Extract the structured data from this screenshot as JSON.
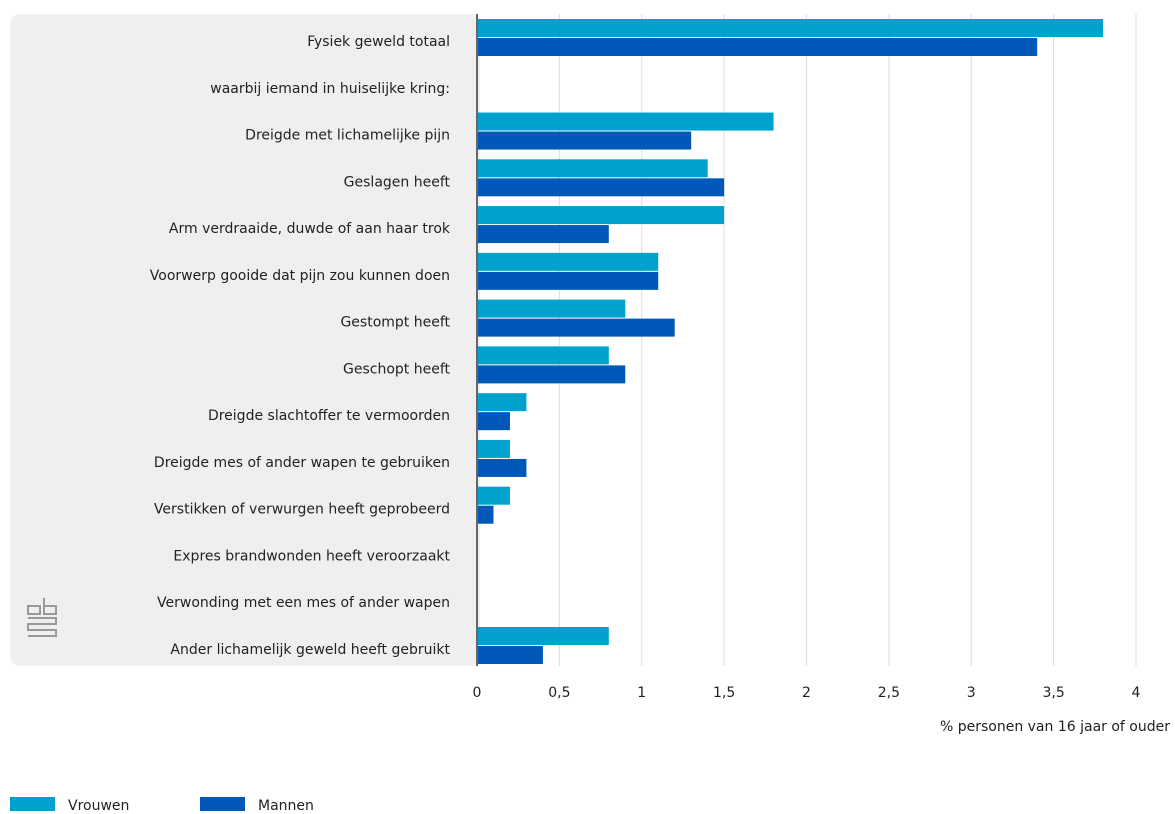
{
  "chart_data": {
    "type": "hbar",
    "categories": [
      "Fysiek geweld totaal",
      "waarbij iemand in huiselijke kring:",
      "Dreigde met lichamelijke pijn",
      "Geslagen heeft",
      "Arm verdraaide, duwde of aan haar trok",
      "Voorwerp gooide dat pijn zou kunnen doen",
      "Gestompt heeft",
      "Geschopt heeft",
      "Dreigde slachtoffer te vermoorden",
      "Dreigde mes of ander wapen te gebruiken",
      "Verstikken of verwurgen heeft geprobeerd",
      "Expres brandwonden heeft veroorzaakt",
      "Verwonding met een mes of ander wapen",
      "Ander lichamelijk geweld heeft gebruikt"
    ],
    "series": [
      {
        "name": "Vrouwen",
        "color": "#00a1cd",
        "values": [
          3.8,
          null,
          1.8,
          1.4,
          1.5,
          1.1,
          0.9,
          0.8,
          0.3,
          0.2,
          0.2,
          null,
          null,
          0.8
        ]
      },
      {
        "name": "Mannen",
        "color": "#0058b8",
        "values": [
          3.4,
          null,
          1.3,
          1.5,
          0.8,
          1.1,
          1.2,
          0.9,
          0.2,
          0.3,
          0.1,
          null,
          null,
          0.4
        ]
      }
    ],
    "xlim": [
      0,
      4
    ],
    "xticks": [
      0,
      {
        "value": 0.5,
        "label": "0,5"
      },
      1,
      {
        "value": 1.5,
        "label": "1,5"
      },
      2,
      {
        "value": 2.5,
        "label": "2,5"
      },
      3,
      {
        "value": 3.5,
        "label": "3,5"
      },
      4
    ],
    "xlabel": "% personen van 16 jaar of ouder",
    "grid": true,
    "legend": "bottom-left"
  }
}
